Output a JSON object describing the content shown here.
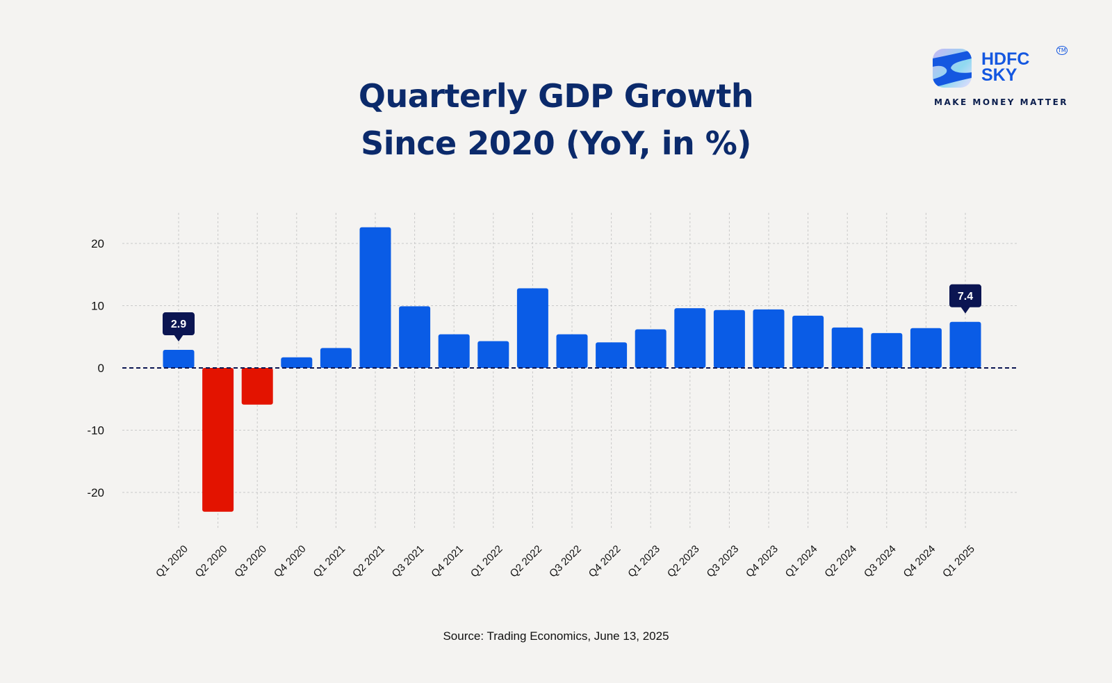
{
  "title": {
    "line1": "Quarterly GDP Growth",
    "line2": "Since 2020 (YoY, in %)"
  },
  "logo": {
    "brand_line1": "HDFC",
    "brand_line2": "SKY",
    "tm": "TM",
    "tagline": "MAKE MONEY MATTER"
  },
  "source": "Source: Trading Economics, June 13, 2025",
  "colors": {
    "positive": "#0a5ce6",
    "negative": "#e31300",
    "title": "#0b2a6b",
    "callout": "#0b1552"
  },
  "chart_data": {
    "type": "bar",
    "title": "Quarterly GDP Growth Since 2020 (YoY, in %)",
    "xlabel": "",
    "ylabel": "",
    "ylim": [
      -25,
      25
    ],
    "yticks": [
      -20,
      -10,
      0,
      10,
      20
    ],
    "grid": true,
    "categories": [
      "Q1 2020",
      "Q2 2020",
      "Q3 2020",
      "Q4 2020",
      "Q1 2021",
      "Q2 2021",
      "Q3 2021",
      "Q4 2021",
      "Q1 2022",
      "Q2 2022",
      "Q3 2022",
      "Q4 2022",
      "Q1 2023",
      "Q2 2023",
      "Q3 2023",
      "Q4 2023",
      "Q1 2024",
      "Q2 2024",
      "Q3 2024",
      "Q4 2024",
      "Q1 2025"
    ],
    "values": [
      2.9,
      -23.1,
      -5.9,
      1.7,
      3.2,
      22.6,
      9.9,
      5.4,
      4.3,
      12.8,
      5.4,
      4.1,
      6.2,
      9.6,
      9.3,
      9.4,
      8.4,
      6.5,
      5.6,
      6.4,
      7.4
    ],
    "annotations": [
      {
        "category": "Q1 2020",
        "label": "2.9"
      },
      {
        "category": "Q1 2025",
        "label": "7.4"
      }
    ]
  }
}
